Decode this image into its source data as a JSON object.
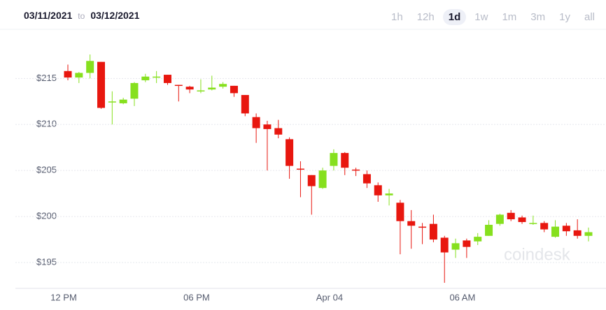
{
  "header": {
    "from": "03/11/2021",
    "to_word": "to",
    "to": "03/12/2021",
    "buttons": [
      "1h",
      "12h",
      "1d",
      "1w",
      "1m",
      "3m",
      "1y",
      "all"
    ],
    "selected_index": 2
  },
  "chart_data": {
    "type": "candlestick",
    "watermark": "coindesk",
    "categories": [
      "12 PM",
      null,
      null,
      null,
      null,
      null,
      null,
      null,
      null,
      null,
      null,
      null,
      "06 PM",
      null,
      null,
      null,
      null,
      null,
      null,
      null,
      null,
      null,
      null,
      null,
      "Apr 04",
      null,
      null,
      null,
      null,
      null,
      null,
      null,
      null,
      null,
      null,
      null,
      "06 AM",
      null,
      null,
      null,
      null,
      null,
      null,
      null,
      null,
      null,
      null,
      null
    ],
    "open": [
      215.8,
      215.1,
      215.6,
      216.8,
      212.4,
      212.3,
      212.8,
      214.8,
      215.1,
      215.4,
      214.3,
      214.1,
      213.6,
      213.8,
      214.1,
      214.2,
      213.2,
      210.8,
      210,
      209.6,
      208.4,
      205.2,
      204.5,
      203.1,
      205.5,
      206.9,
      205.1,
      204.6,
      203.4,
      202.3,
      201.5,
      199.5,
      198.9,
      199.2,
      197.7,
      196.4,
      197.4,
      197.3,
      197.9,
      199.2,
      200.4,
      199.9,
      199.2,
      199.3,
      197.8,
      199,
      198.5,
      197.9
    ],
    "high": [
      216.5,
      215.7,
      217.6,
      216.8,
      213.6,
      212.9,
      214.6,
      215.5,
      215.8,
      215.4,
      214.3,
      214.2,
      214.9,
      215.3,
      214.6,
      214.2,
      213.2,
      211.2,
      210.4,
      210.5,
      208.6,
      206,
      204.5,
      205.3,
      207.3,
      207,
      205.3,
      205,
      203.7,
      203,
      201.8,
      200.7,
      199.3,
      200.2,
      197.9,
      197.6,
      197.6,
      198.2,
      199.6,
      200.3,
      200.7,
      200.1,
      200.1,
      199.5,
      199.6,
      199.3,
      199.7,
      198.8
    ],
    "low": [
      214.8,
      214.5,
      215,
      211.7,
      210,
      212.2,
      212,
      214.6,
      214.5,
      214.3,
      212.5,
      213.4,
      213.4,
      213.7,
      213.9,
      213,
      210.9,
      208,
      205,
      208.5,
      204.1,
      202.1,
      200.2,
      203,
      205,
      204.5,
      204.4,
      203.1,
      201.6,
      201.2,
      195.9,
      196.5,
      197,
      197.2,
      192.8,
      195.5,
      195.5,
      196.9,
      197.9,
      199,
      199.5,
      199.2,
      199.1,
      198.3,
      197.7,
      197.9,
      197.6,
      197.3
    ],
    "close": [
      215.1,
      215.6,
      216.9,
      211.8,
      212.5,
      212.7,
      214.5,
      215.2,
      215.2,
      214.5,
      214.2,
      213.8,
      213.7,
      214,
      214.4,
      213.4,
      211.2,
      209.6,
      209.5,
      208.9,
      205.5,
      205.1,
      203.3,
      205,
      206.9,
      205.3,
      205,
      203.6,
      202.3,
      202.5,
      199.5,
      199,
      198.8,
      197.5,
      196.1,
      197.1,
      196.7,
      197.8,
      199.1,
      200.2,
      199.7,
      199.4,
      199.3,
      198.6,
      198.9,
      198.4,
      197.9,
      198.3
    ],
    "up_color": "#86e01e",
    "down_color": "#e8170f",
    "ylim": [
      192.5,
      219.5
    ],
    "yticks": [
      {
        "value": 195,
        "label": "$195"
      },
      {
        "value": 200,
        "label": "$200"
      },
      {
        "value": 205,
        "label": "$205"
      },
      {
        "value": 210,
        "label": "$210"
      },
      {
        "value": 215,
        "label": "$215"
      }
    ],
    "grid": true
  }
}
